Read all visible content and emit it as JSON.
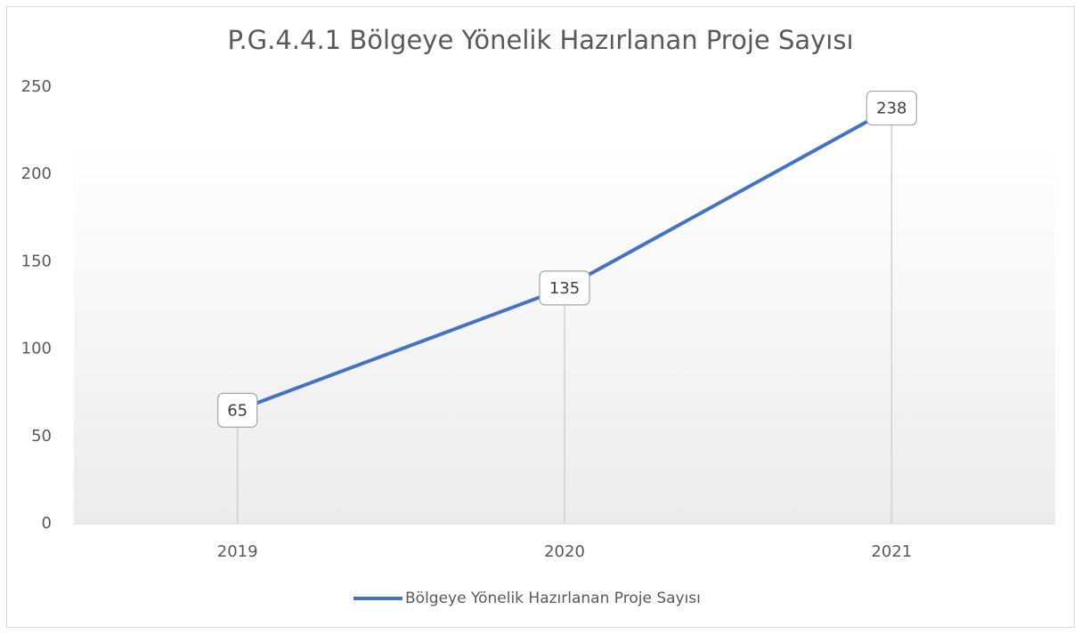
{
  "chart_data": {
    "type": "line",
    "title": "P.G.4.4.1 Bölgeye Yönelik Hazırlanan Proje Sayısı",
    "categories": [
      "2019",
      "2020",
      "2021"
    ],
    "series": [
      {
        "name": "Bölgeye Yönelik Hazırlanan Proje Sayısı",
        "color": "#4472c4",
        "values": [
          65,
          135,
          238
        ]
      }
    ],
    "ylim": [
      0,
      250
    ],
    "yticks": [
      0,
      50,
      100,
      150,
      200,
      250
    ],
    "drop_lines": true,
    "data_labels": true,
    "legend": "bottom"
  }
}
